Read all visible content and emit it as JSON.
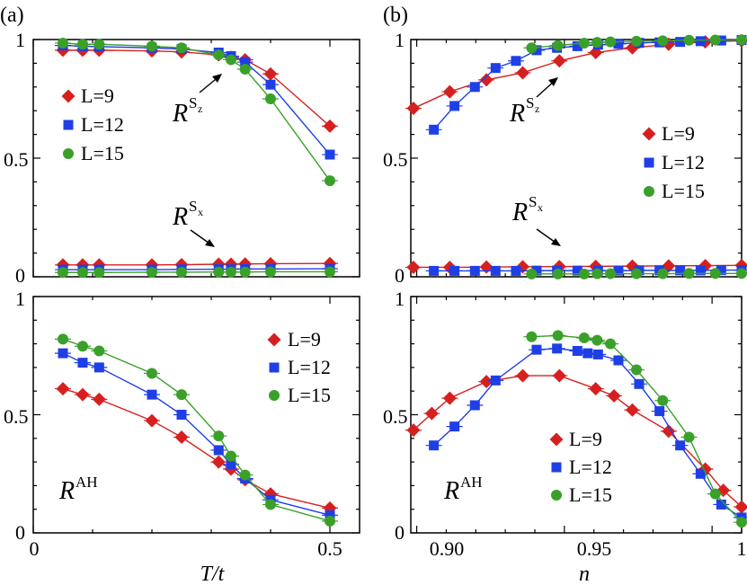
{
  "colors": {
    "L9": "#d62020",
    "L12": "#1f3fe6",
    "L15": "#3aa02a",
    "axis": "#000000"
  },
  "panel_labels": {
    "a": "(a)",
    "b": "(b)"
  },
  "axis_titles": {
    "a_x": "T/t",
    "b_x": "n"
  },
  "chart_data": [
    {
      "id": "a_top",
      "type": "line",
      "xlim": [
        0,
        0.55
      ],
      "ylim": [
        0,
        1
      ],
      "xticks": [
        0,
        0.5
      ],
      "yticks": [
        {
          "v": 0,
          "label": "0"
        },
        {
          "v": 0.5,
          "label": "0.5"
        },
        {
          "v": 1,
          "label": "1"
        }
      ],
      "legend": [
        "L=9",
        "L=12",
        "L=15"
      ],
      "annotations": {
        "rsz": {
          "base": "R",
          "sup": "S",
          "sub": "z"
        },
        "rsx": {
          "base": "R",
          "sup": "S",
          "sub": "x"
        }
      },
      "series": [
        {
          "name": "L=9",
          "marker": "diamond",
          "x": [
            0.05,
            0.0833,
            0.1111,
            0.2,
            0.25,
            0.3125,
            0.3333,
            0.3571,
            0.4,
            0.5
          ],
          "y": [
            0.955,
            0.955,
            0.955,
            0.952,
            0.948,
            0.935,
            0.925,
            0.915,
            0.855,
            0.635
          ]
        },
        {
          "name": "L=12",
          "marker": "square",
          "x": [
            0.05,
            0.0833,
            0.1111,
            0.2,
            0.25,
            0.3125,
            0.3333,
            0.3571,
            0.4,
            0.5
          ],
          "y": [
            0.975,
            0.972,
            0.97,
            0.965,
            0.96,
            0.945,
            0.93,
            0.905,
            0.81,
            0.515
          ]
        },
        {
          "name": "L=15",
          "marker": "circle",
          "x": [
            0.05,
            0.0833,
            0.1111,
            0.2,
            0.25,
            0.3125,
            0.3333,
            0.3571,
            0.4,
            0.5
          ],
          "y": [
            0.985,
            0.98,
            0.98,
            0.972,
            0.965,
            0.935,
            0.915,
            0.875,
            0.75,
            0.405
          ]
        },
        {
          "name": "L=9",
          "marker": "diamond",
          "x": [
            0.05,
            0.0833,
            0.1111,
            0.2,
            0.25,
            0.3125,
            0.3333,
            0.3571,
            0.4,
            0.5
          ],
          "y": [
            0.05,
            0.05,
            0.05,
            0.05,
            0.051,
            0.053,
            0.053,
            0.054,
            0.055,
            0.056
          ]
        },
        {
          "name": "L=12",
          "marker": "square",
          "x": [
            0.05,
            0.0833,
            0.1111,
            0.2,
            0.25,
            0.3125,
            0.3333,
            0.3571,
            0.4,
            0.5
          ],
          "y": [
            0.03,
            0.03,
            0.03,
            0.03,
            0.031,
            0.032,
            0.032,
            0.033,
            0.033,
            0.034
          ]
        },
        {
          "name": "L=15",
          "marker": "circle",
          "x": [
            0.05,
            0.0833,
            0.1111,
            0.2,
            0.25,
            0.3125,
            0.3333,
            0.3571,
            0.4,
            0.5
          ],
          "y": [
            0.018,
            0.018,
            0.018,
            0.019,
            0.019,
            0.02,
            0.02,
            0.02,
            0.021,
            0.021
          ]
        }
      ]
    },
    {
      "id": "a_bottom",
      "type": "line",
      "xlim": [
        0,
        0.55
      ],
      "ylim": [
        0,
        1
      ],
      "xticks": [
        {
          "v": 0,
          "label": "0"
        },
        {
          "v": 0.5,
          "label": "0.5"
        }
      ],
      "yticks": [
        {
          "v": 0,
          "label": "0"
        },
        {
          "v": 0.5,
          "label": "0.5"
        },
        {
          "v": 1,
          "label": "1"
        }
      ],
      "legend": [
        "L=9",
        "L=12",
        "L=15"
      ],
      "annotations": {
        "rah": {
          "base": "R",
          "sup": "AH"
        }
      },
      "series": [
        {
          "name": "L=9",
          "marker": "diamond",
          "x": [
            0.05,
            0.0833,
            0.1111,
            0.2,
            0.25,
            0.3125,
            0.3333,
            0.3571,
            0.4,
            0.5
          ],
          "y": [
            0.61,
            0.585,
            0.565,
            0.475,
            0.405,
            0.3,
            0.27,
            0.225,
            0.165,
            0.105
          ]
        },
        {
          "name": "L=12",
          "marker": "square",
          "x": [
            0.05,
            0.0833,
            0.1111,
            0.2,
            0.25,
            0.3125,
            0.3333,
            0.3571,
            0.4,
            0.5
          ],
          "y": [
            0.76,
            0.72,
            0.7,
            0.585,
            0.5,
            0.35,
            0.29,
            0.23,
            0.14,
            0.075
          ]
        },
        {
          "name": "L=15",
          "marker": "circle",
          "x": [
            0.05,
            0.0833,
            0.1111,
            0.2,
            0.25,
            0.3125,
            0.3333,
            0.3571,
            0.4,
            0.5
          ],
          "y": [
            0.82,
            0.79,
            0.77,
            0.675,
            0.585,
            0.41,
            0.325,
            0.245,
            0.12,
            0.05
          ]
        }
      ]
    },
    {
      "id": "b_top",
      "type": "line",
      "xlim": [
        0.888,
        1.0
      ],
      "ylim": [
        0,
        1
      ],
      "yticks": [
        {
          "v": 0,
          "label": "0"
        },
        {
          "v": 0.5,
          "label": "0.5"
        },
        {
          "v": 1,
          "label": "1"
        }
      ],
      "legend": [
        "L=9",
        "L=12",
        "L=15"
      ],
      "annotations": {
        "rsz": {
          "base": "R",
          "sup": "S",
          "sub": "z"
        },
        "rsx": {
          "base": "R",
          "sup": "S",
          "sub": "x"
        }
      },
      "series": [
        {
          "name": "L=9",
          "marker": "diamond",
          "x": [
            0.8889,
            0.9012,
            0.9136,
            0.9259,
            0.9383,
            0.9506,
            0.963,
            0.9753,
            0.9877,
            1.0
          ],
          "y": [
            0.71,
            0.78,
            0.83,
            0.86,
            0.91,
            0.945,
            0.965,
            0.98,
            0.99,
            0.995
          ]
        },
        {
          "name": "L=12",
          "marker": "square",
          "x": [
            0.8958,
            0.9028,
            0.9097,
            0.9167,
            0.9236,
            0.9306,
            0.9375,
            0.9444,
            0.9514,
            0.9583,
            0.9653,
            0.9722,
            0.9792,
            0.9861,
            0.9931,
            1.0
          ],
          "y": [
            0.62,
            0.72,
            0.8,
            0.88,
            0.91,
            0.955,
            0.965,
            0.972,
            0.978,
            0.982,
            0.986,
            0.988,
            0.99,
            0.993,
            0.996,
            0.998
          ]
        },
        {
          "name": "L=15",
          "marker": "circle",
          "x": [
            0.9289,
            0.9378,
            0.9467,
            0.9511,
            0.9556,
            0.9644,
            0.9733,
            0.9822,
            0.9911,
            1.0
          ],
          "y": [
            0.965,
            0.975,
            0.985,
            0.988,
            0.99,
            0.993,
            0.995,
            0.997,
            0.998,
            0.999
          ]
        },
        {
          "name": "L=9",
          "marker": "diamond",
          "x": [
            0.8889,
            0.9012,
            0.9136,
            0.9259,
            0.9383,
            0.9506,
            0.963,
            0.9753,
            0.9877,
            1.0
          ],
          "y": [
            0.04,
            0.04,
            0.041,
            0.042,
            0.043,
            0.044,
            0.045,
            0.046,
            0.047,
            0.048
          ]
        },
        {
          "name": "L=12",
          "marker": "square",
          "x": [
            0.8958,
            0.9028,
            0.9097,
            0.9167,
            0.9236,
            0.9306,
            0.9375,
            0.9444,
            0.9514,
            0.9583,
            0.9653,
            0.9722,
            0.9792,
            0.9861,
            0.9931,
            1.0
          ],
          "y": [
            0.025,
            0.025,
            0.025,
            0.025,
            0.025,
            0.026,
            0.026,
            0.026,
            0.026,
            0.026,
            0.027,
            0.027,
            0.027,
            0.027,
            0.028,
            0.028
          ]
        },
        {
          "name": "L=15",
          "marker": "circle",
          "x": [
            0.9289,
            0.9378,
            0.9467,
            0.9511,
            0.9556,
            0.9644,
            0.9733,
            0.9822,
            0.9911,
            1.0
          ],
          "y": [
            0.012,
            0.012,
            0.012,
            0.013,
            0.013,
            0.013,
            0.013,
            0.014,
            0.014,
            0.014
          ]
        }
      ]
    },
    {
      "id": "b_bottom",
      "type": "line",
      "xlim": [
        0.888,
        1.0
      ],
      "ylim": [
        0,
        1
      ],
      "xticks": [
        {
          "v": 0.9,
          "label": "0.90"
        },
        {
          "v": 0.95,
          "label": "0.95"
        },
        {
          "v": 1.0,
          "label": "1"
        }
      ],
      "yticks": [
        {
          "v": 0,
          "label": "0"
        },
        {
          "v": 0.5,
          "label": "0.5"
        },
        {
          "v": 1,
          "label": "1"
        }
      ],
      "legend": [
        "L=9",
        "L=12",
        "L=15"
      ],
      "annotations": {
        "rah": {
          "base": "R",
          "sup": "AH"
        }
      },
      "series": [
        {
          "name": "L=9",
          "marker": "diamond",
          "x": [
            0.8889,
            0.8951,
            0.9012,
            0.9136,
            0.9259,
            0.9383,
            0.9506,
            0.9568,
            0.963,
            0.9753,
            0.9877,
            0.9938,
            1.0
          ],
          "y": [
            0.435,
            0.505,
            0.57,
            0.64,
            0.665,
            0.665,
            0.61,
            0.58,
            0.52,
            0.43,
            0.27,
            0.18,
            0.11
          ]
        },
        {
          "name": "L=12",
          "marker": "square",
          "x": [
            0.8958,
            0.9028,
            0.9097,
            0.9167,
            0.9306,
            0.9375,
            0.9444,
            0.9479,
            0.9514,
            0.9583,
            0.9653,
            0.9722,
            0.9792,
            0.9861,
            0.9931,
            1.0
          ],
          "y": [
            0.37,
            0.45,
            0.54,
            0.645,
            0.775,
            0.78,
            0.77,
            0.76,
            0.755,
            0.73,
            0.63,
            0.515,
            0.37,
            0.25,
            0.12,
            0.065
          ]
        },
        {
          "name": "L=15",
          "marker": "circle",
          "x": [
            0.9289,
            0.9378,
            0.9467,
            0.9511,
            0.9556,
            0.9644,
            0.9733,
            0.9822,
            0.9911,
            1.0
          ],
          "y": [
            0.83,
            0.835,
            0.825,
            0.815,
            0.8,
            0.69,
            0.56,
            0.405,
            0.165,
            0.045
          ]
        }
      ]
    }
  ]
}
